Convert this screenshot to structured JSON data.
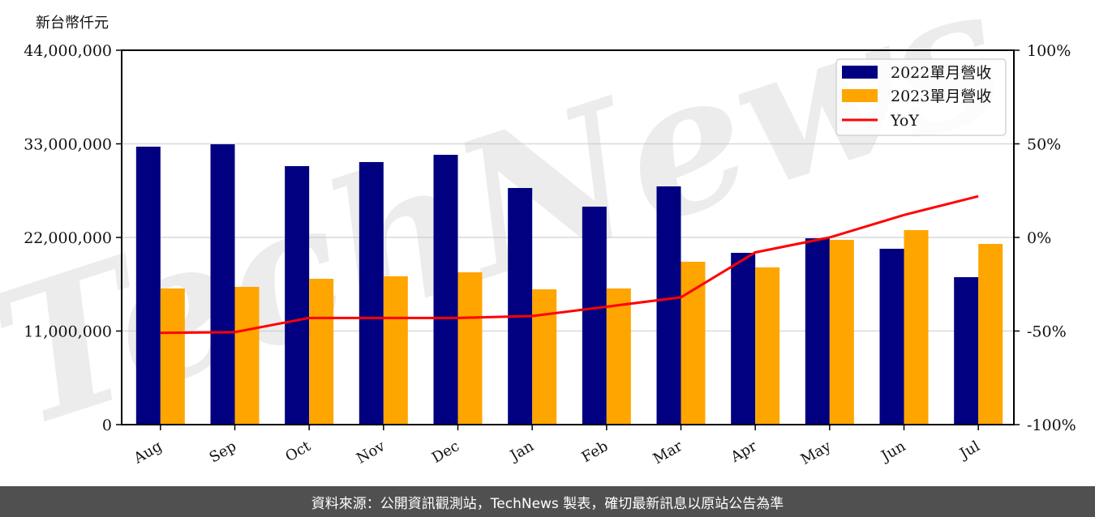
{
  "header": {
    "unit_label": "新台幣仟元"
  },
  "footer": {
    "source_text": "資料來源：公開資訊觀測站，TechNews 製表，確切最新訊息以原站公告為準"
  },
  "watermark": {
    "text": "TechNews"
  },
  "colors": {
    "series_2022": "#000080",
    "series_2023": "#FFA500",
    "yoy": "#FF0000",
    "grid": "#d9d9d9",
    "footer_bg": "#505050"
  },
  "chart_data": {
    "type": "bar",
    "title": "",
    "xlabel": "",
    "ylabel": "新台幣仟元",
    "y2label": "YoY",
    "categories": [
      "Aug",
      "Sep",
      "Oct",
      "Nov",
      "Dec",
      "Jan",
      "Feb",
      "Mar",
      "Apr",
      "May",
      "Jun",
      "Jul"
    ],
    "series": [
      {
        "name": "2022單月營收",
        "type": "bar",
        "axis": "left",
        "color": "#000080",
        "values": [
          32670000,
          32950000,
          30380000,
          30860000,
          31710000,
          27810000,
          25620000,
          28000000,
          20190000,
          21900000,
          20670000,
          17330000
        ]
      },
      {
        "name": "2023單月營收",
        "type": "bar",
        "axis": "left",
        "color": "#FFA500",
        "values": [
          16000000,
          16190000,
          17140000,
          17430000,
          17900000,
          15900000,
          16000000,
          19140000,
          18480000,
          21710000,
          22860000,
          21240000
        ]
      },
      {
        "name": "YoY",
        "type": "line",
        "axis": "right",
        "color": "#FF0000",
        "values": [
          -51,
          -50.6,
          -43,
          -43,
          -43,
          -42,
          -37,
          -32,
          -8,
          0,
          12,
          22
        ]
      }
    ],
    "ylim": [
      0,
      44000000
    ],
    "yticks": [
      "0",
      "11,000,000",
      "22,000,000",
      "33,000,000",
      "44,000,000"
    ],
    "y2lim": [
      -100,
      100
    ],
    "y2ticks": [
      "-100%",
      "-50%",
      "0%",
      "50%",
      "100%"
    ],
    "grid": true,
    "legend_position": "upper right"
  }
}
